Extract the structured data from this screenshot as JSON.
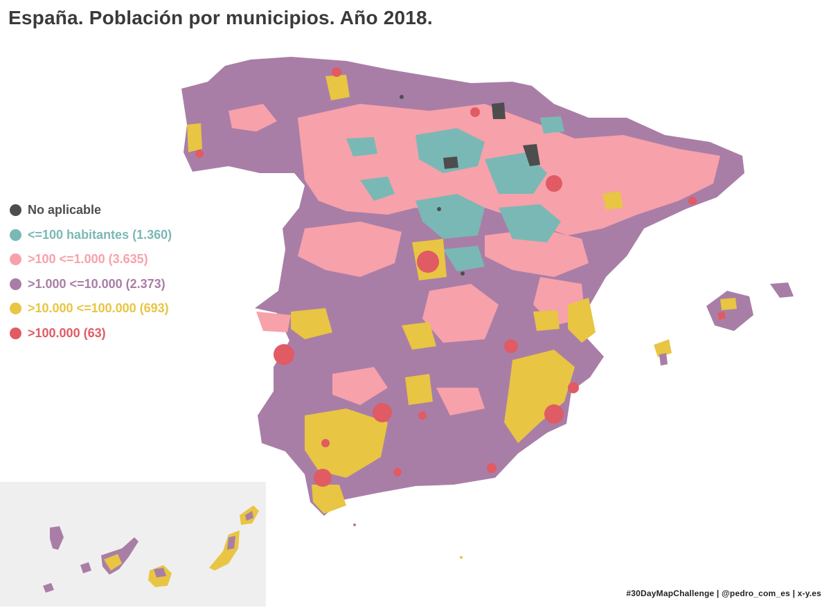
{
  "title": "España. Población por municipios. Año 2018.",
  "credits": "#30DayMapChallenge | @pedro_com_es | x-y.es",
  "legend": [
    {
      "label": "No aplicable",
      "color": "#4d4d4d"
    },
    {
      "label": "<=100 habitantes (1.360)",
      "color": "#7ab8b5"
    },
    {
      "label": ">100 <=1.000 (3.635)",
      "color": "#f7a1ab"
    },
    {
      "label": ">1.000 <=10.000 (2.373)",
      "color": "#a97ea6"
    },
    {
      "label": ">10.000 <=100.000 (693)",
      "color": "#e8c543"
    },
    {
      "label": ">100.000 (63)",
      "color": "#e05b63"
    }
  ],
  "inset": {
    "background": "#efefef"
  }
}
